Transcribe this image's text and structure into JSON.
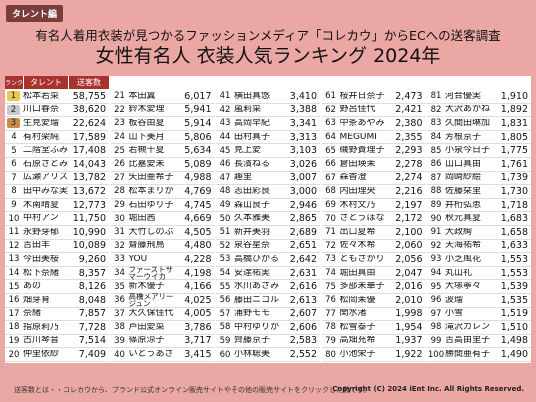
{
  "header": {
    "tag": "タレント編",
    "subtitle": "有名人着用衣装が見つかるファッションメディア「コレカウ」からECへの送客調査",
    "title": "女性有名人 衣装人気ランキング 2024年"
  },
  "table": {
    "headers": [
      "ランク",
      "タレント",
      "送客数"
    ],
    "columns": [
      [
        [
          "1",
          "松本若菜",
          "58,755"
        ],
        [
          "2",
          "川口春奈",
          "38,620"
        ],
        [
          "3",
          "生見愛瑠",
          "22,624"
        ],
        [
          "4",
          "有村架純",
          "17,589"
        ],
        [
          "5",
          "二階堂ふみ",
          "17,408"
        ],
        [
          "6",
          "石原さとみ",
          "14,043"
        ],
        [
          "7",
          "広瀬アリス",
          "13,782"
        ],
        [
          "8",
          "田中みな実",
          "13,672"
        ],
        [
          "9",
          "木南晴夏",
          "12,773"
        ],
        [
          "10",
          "中村アン",
          "11,750"
        ],
        [
          "11",
          "永野芽郁",
          "10,990"
        ],
        [
          "12",
          "吉田羊",
          "10,089"
        ],
        [
          "13",
          "今田美桜",
          "9,260"
        ],
        [
          "14",
          "松下奈緒",
          "8,357"
        ],
        [
          "15",
          "あの",
          "8,126"
        ],
        [
          "16",
          "畑芽育",
          "8,048"
        ],
        [
          "17",
          "奈緒",
          "7,857"
        ],
        [
          "18",
          "指原莉乃",
          "7,728"
        ],
        [
          "19",
          "古川琴音",
          "7,514"
        ],
        [
          "20",
          "仲里依紗",
          "7,409"
        ]
      ],
      [
        [
          "21",
          "本田翼",
          "6,017"
        ],
        [
          "22",
          "鈴木愛理",
          "5,941"
        ],
        [
          "23",
          "板谷由夏",
          "5,914"
        ],
        [
          "24",
          "山下美月",
          "5,806"
        ],
        [
          "25",
          "若槻千夏",
          "5,634"
        ],
        [
          "26",
          "比嘉愛未",
          "5,089"
        ],
        [
          "27",
          "矢田亜希子",
          "4,988"
        ],
        [
          "28",
          "松本まりか",
          "4,769"
        ],
        [
          "29",
          "石田ゆり子",
          "4,745"
        ],
        [
          "30",
          "堀田茜",
          "4,669"
        ],
        [
          "31",
          "大竹しのぶ",
          "4,505"
        ],
        [
          "32",
          "齋藤飛鳥",
          "4,480"
        ],
        [
          "33",
          "YOU",
          "4,228"
        ],
        [
          "34",
          "ファーストサマーウイカ",
          "4,198"
        ],
        [
          "35",
          "新木優子",
          "4,166"
        ],
        [
          "36",
          "高橋メアリージュン",
          "4,025"
        ],
        [
          "37",
          "大久保佳代子",
          "4,005"
        ],
        [
          "38",
          "芦田愛菜",
          "3,786"
        ],
        [
          "39",
          "篠原涼子",
          "3,717"
        ],
        [
          "40",
          "いとうあさこ",
          "3,415"
        ]
      ],
      [
        [
          "41",
          "横田真悠",
          "3,410"
        ],
        [
          "42",
          "嵐莉菜",
          "3,388"
        ],
        [
          "43",
          "高岡早紀",
          "3,341"
        ],
        [
          "44",
          "田村真子",
          "3,313"
        ],
        [
          "45",
          "見上愛",
          "3,103"
        ],
        [
          "46",
          "長濱ねる",
          "3,026"
        ],
        [
          "47",
          "趣里",
          "3,007"
        ],
        [
          "48",
          "志田彩良",
          "3,000"
        ],
        [
          "49",
          "森山良子",
          "2,946"
        ],
        [
          "50",
          "久本雅美",
          "2,865"
        ],
        [
          "51",
          "新井美羽",
          "2,689"
        ],
        [
          "52",
          "泉谷星奈",
          "2,651"
        ],
        [
          "53",
          "高橋ひかる",
          "2,642"
        ],
        [
          "54",
          "安達祐実",
          "2,631"
        ],
        [
          "55",
          "水川あさみ",
          "2,616"
        ],
        [
          "56",
          "藤田ニコル",
          "2,613"
        ],
        [
          "57",
          "浦野モモ",
          "2,607"
        ],
        [
          "58",
          "中村ゆりか",
          "2,606"
        ],
        [
          "59",
          "齊藤京子",
          "2,583"
        ],
        [
          "60",
          "小林聡美",
          "2,552"
        ]
      ],
      [
        [
          "61",
          "桜井日奈子",
          "2,473"
        ],
        [
          "62",
          "野呂佳代",
          "2,421"
        ],
        [
          "63",
          "中条あやみ",
          "2,380"
        ],
        [
          "64",
          "MEGUMI",
          "2,355"
        ],
        [
          "65",
          "磯野貴理子",
          "2,293"
        ],
        [
          "66",
          "倉田瑛茉",
          "2,278"
        ],
        [
          "67",
          "森香澄",
          "2,274"
        ],
        [
          "68",
          "内田理央",
          "2,216"
        ],
        [
          "69",
          "木村文乃",
          "2,197"
        ],
        [
          "70",
          "さとうほなみ",
          "2,172"
        ],
        [
          "71",
          "出口夏希",
          "2,100"
        ],
        [
          "72",
          "佐々木希",
          "2,060"
        ],
        [
          "73",
          "ともさかりえ",
          "2,056"
        ],
        [
          "74",
          "堀田真由",
          "2,047"
        ],
        [
          "75",
          "多部未華子",
          "2,016"
        ],
        [
          "76",
          "松岡茉優",
          "2,010"
        ],
        [
          "77",
          "関水渚",
          "1,998"
        ],
        [
          "78",
          "松雪泰子",
          "1,954"
        ],
        [
          "79",
          "高畑充希",
          "1,937"
        ],
        [
          "80",
          "小池栄子",
          "1,922"
        ]
      ],
      [
        [
          "81",
          "河合優実",
          "1,910"
        ],
        [
          "82",
          "大沢あかね",
          "1,892"
        ],
        [
          "83",
          "久間田琳加",
          "1,831"
        ],
        [
          "84",
          "芳根京子",
          "1,805"
        ],
        [
          "85",
          "小泉今日子",
          "1,775"
        ],
        [
          "86",
          "山口真由",
          "1,761"
        ],
        [
          "87",
          "岡崎紗絵",
          "1,739"
        ],
        [
          "88",
          "佐藤栞里",
          "1,730"
        ],
        [
          "89",
          "井桁弘恵",
          "1,718"
        ],
        [
          "90",
          "秋元真夏",
          "1,683"
        ],
        [
          "91",
          "大政絢",
          "1,658"
        ],
        [
          "92",
          "天海祐希",
          "1,633"
        ],
        [
          "93",
          "小芝風花",
          "1,553"
        ],
        [
          "94",
          "丸山礼",
          "1,553"
        ],
        [
          "95",
          "大塚寧々",
          "1,539"
        ],
        [
          "96",
          "波瑠",
          "1,535"
        ],
        [
          "97",
          "小雪",
          "1,519"
        ],
        [
          "98",
          "滝沢カレン",
          "1,510"
        ],
        [
          "99",
          "吉高由里子",
          "1,498"
        ],
        [
          "100",
          "勝間亜有子",
          "1,490"
        ]
      ]
    ]
  },
  "footer": {
    "note": "送客数とは・・コレカウから、ブランド公式オンライン販売サイトやその他の販売サイトをクリックした数です。",
    "copyright": "Copyright (C) 2024 iEnt Inc. All Rights Reserved."
  }
}
